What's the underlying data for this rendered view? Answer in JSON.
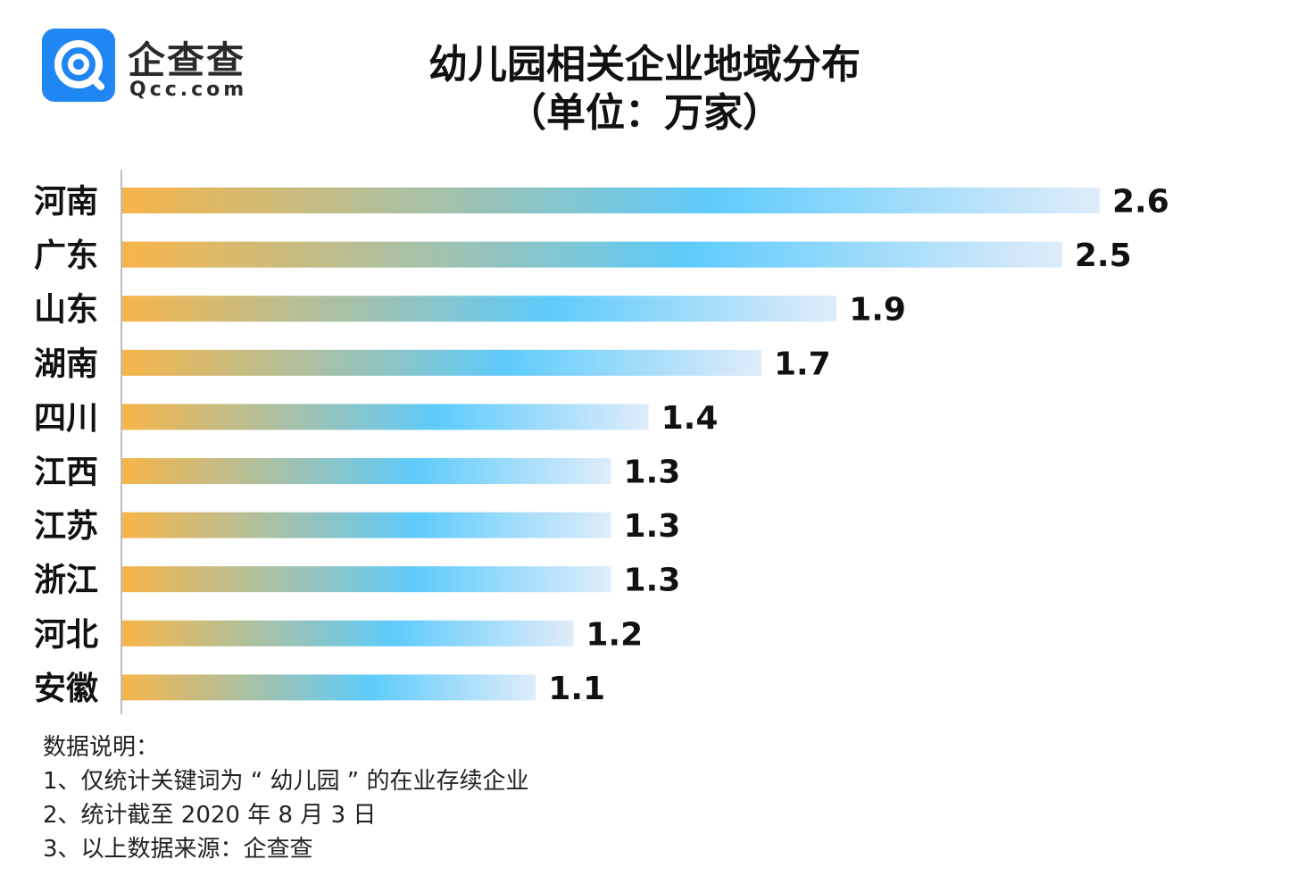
{
  "logo": {
    "name": "企查查",
    "domain": "Qcc.com",
    "icon": "qcc-logo-icon"
  },
  "title": {
    "line1": "幼儿园相关企业地域分布",
    "line2": "（单位：万家）"
  },
  "chart_data": {
    "type": "bar",
    "orientation": "horizontal",
    "title": "幼儿园相关企业地域分布",
    "unit": "万家",
    "categories": [
      "河南",
      "广东",
      "山东",
      "湖南",
      "四川",
      "江西",
      "江苏",
      "浙江",
      "河北",
      "安徽"
    ],
    "values": [
      2.6,
      2.5,
      1.9,
      1.7,
      1.4,
      1.3,
      1.3,
      1.3,
      1.2,
      1.1
    ],
    "value_labels": [
      "2.6",
      "2.5",
      "1.9",
      "1.7",
      "1.4",
      "1.3",
      "1.3",
      "1.3",
      "1.2",
      "1.1"
    ],
    "xlim": [
      0,
      2.6
    ],
    "grid": false,
    "legend": "none",
    "colors": {
      "gradient_start": "#f7b54a",
      "gradient_mid": "#5ecbfb",
      "gradient_end": "#dfecfa"
    }
  },
  "notes": {
    "heading": "数据说明：",
    "items": [
      "1、仅统计关键词为 “ 幼儿园 ” 的在业存续企业",
      "2、统计截至 2020 年 8 月 3 日",
      "3、以上数据来源：企查查"
    ]
  }
}
